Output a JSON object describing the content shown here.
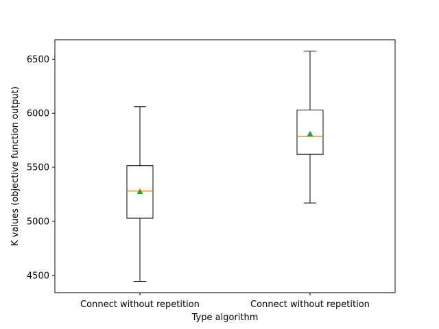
{
  "chart_data": {
    "type": "box",
    "title": "",
    "xlabel": "Type algorithm",
    "ylabel": "K values (objective function output)",
    "categories": [
      "Connect without repetition",
      "Connect without repetition"
    ],
    "ylim": [
      4340,
      6680
    ],
    "yticks": [
      4500,
      5000,
      5500,
      6000,
      6500
    ],
    "grid": false,
    "boxes": [
      {
        "label": "Connect without repetition",
        "whisker_low": 4445,
        "q1": 5030,
        "median": 5280,
        "q3": 5515,
        "whisker_high": 6060,
        "mean": 5275
      },
      {
        "label": "Connect without repetition",
        "whisker_low": 5170,
        "q1": 5620,
        "median": 5785,
        "q3": 6030,
        "whisker_high": 6575,
        "mean": 5810
      }
    ],
    "colors": {
      "box": "#000000",
      "median": "#ff7f0e",
      "mean": "#2ca02c"
    }
  }
}
